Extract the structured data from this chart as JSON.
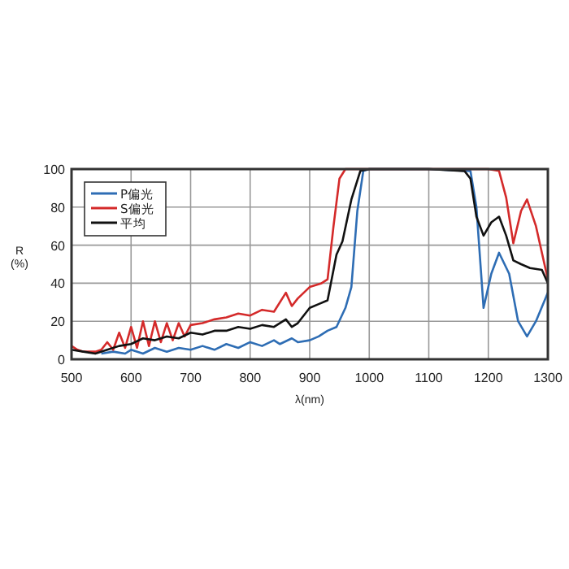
{
  "chart_data": {
    "type": "line",
    "xlabel": "λ(nm)",
    "ylabel": "R\n(%)",
    "xlim": [
      500,
      1300
    ],
    "ylim": [
      0,
      100
    ],
    "xticks": [
      500,
      600,
      700,
      800,
      900,
      1000,
      1100,
      1200,
      1300
    ],
    "yticks": [
      0,
      20,
      40,
      60,
      80,
      100
    ],
    "grid": true,
    "legend": "top left",
    "marker": "none",
    "line_style": "solid",
    "series": [
      {
        "name": "P偏光",
        "color": "#2e6db4",
        "x": [
          550,
          570,
          590,
          600,
          620,
          640,
          660,
          680,
          700,
          720,
          740,
          760,
          780,
          800,
          820,
          840,
          850,
          870,
          880,
          900,
          915,
          930,
          945,
          960,
          970,
          980,
          990,
          1000,
          1100,
          1170,
          1180,
          1192,
          1205,
          1218,
          1235,
          1250,
          1265,
          1280,
          1300
        ],
        "values": [
          3,
          4,
          3,
          5,
          3,
          6,
          4,
          6,
          5,
          7,
          5,
          8,
          6,
          9,
          7,
          10,
          8,
          11,
          9,
          10,
          12,
          15,
          17,
          27,
          38,
          78,
          99,
          100,
          100,
          99,
          80,
          27,
          45,
          56,
          45,
          20,
          12,
          20,
          35
        ]
      },
      {
        "name": "S偏光",
        "color": "#d42a2a",
        "x": [
          500,
          510,
          520,
          540,
          550,
          560,
          570,
          580,
          590,
          600,
          610,
          620,
          630,
          640,
          650,
          660,
          670,
          680,
          690,
          700,
          720,
          740,
          760,
          780,
          800,
          820,
          840,
          860,
          870,
          880,
          900,
          920,
          930,
          940,
          950,
          960,
          1000,
          1100,
          1200,
          1218,
          1230,
          1242,
          1255,
          1265,
          1280,
          1300
        ],
        "values": [
          7,
          5,
          4,
          4,
          5,
          9,
          5,
          14,
          6,
          17,
          6,
          20,
          7,
          20,
          9,
          19,
          10,
          19,
          12,
          18,
          19,
          21,
          22,
          24,
          23,
          26,
          25,
          35,
          28,
          32,
          38,
          40,
          42,
          70,
          95,
          100,
          100,
          100,
          100,
          99,
          85,
          61,
          78,
          84,
          70,
          42
        ]
      },
      {
        "name": "平均",
        "color": "#111111",
        "x": [
          500,
          520,
          540,
          560,
          580,
          600,
          620,
          640,
          660,
          680,
          700,
          720,
          740,
          760,
          780,
          800,
          820,
          840,
          860,
          870,
          880,
          900,
          915,
          930,
          945,
          955,
          970,
          985,
          1000,
          1100,
          1160,
          1170,
          1180,
          1192,
          1205,
          1218,
          1230,
          1242,
          1255,
          1270,
          1290,
          1300
        ],
        "values": [
          5,
          4,
          3,
          5,
          7,
          8,
          11,
          10,
          12,
          11,
          14,
          13,
          15,
          15,
          17,
          16,
          18,
          17,
          21,
          17,
          19,
          27,
          29,
          31,
          55,
          62,
          84,
          99,
          100,
          100,
          99,
          95,
          75,
          65,
          72,
          75,
          65,
          52,
          50,
          48,
          47,
          40
        ]
      }
    ]
  }
}
